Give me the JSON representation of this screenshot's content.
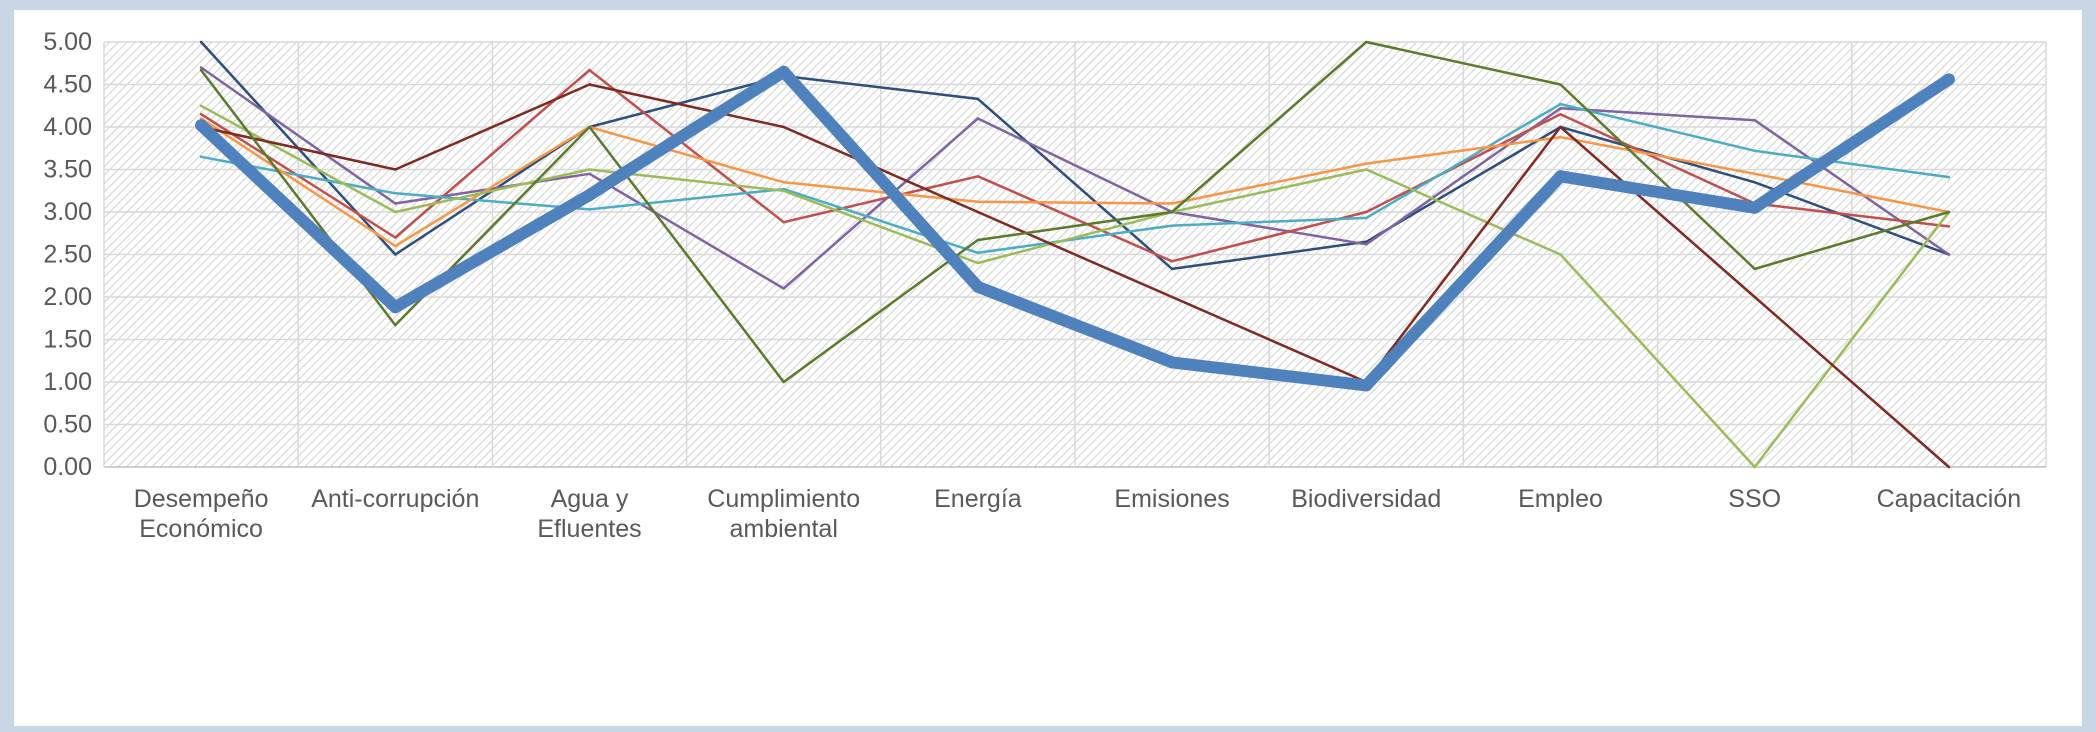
{
  "chart_data": {
    "type": "line",
    "title": "",
    "xlabel": "",
    "ylabel": "",
    "ylim": [
      0,
      5
    ],
    "yticks": [
      "0.00",
      "0.50",
      "1.00",
      "1.50",
      "2.00",
      "2.50",
      "3.00",
      "3.50",
      "4.00",
      "4.50",
      "5.00"
    ],
    "categories": [
      [
        "Desempeño",
        "Económico"
      ],
      [
        "Anti-corrupción"
      ],
      [
        "Agua y",
        "Efluentes"
      ],
      [
        "Cumplimiento",
        "ambiental"
      ],
      [
        "Energía"
      ],
      [
        "Emisiones"
      ],
      [
        "Biodiversidad"
      ],
      [
        "Empleo"
      ],
      [
        "SSO"
      ],
      [
        "Capacitación"
      ]
    ],
    "grid": true,
    "legend": "none",
    "series": [
      {
        "color": "#2e4f7c",
        "width": 2.5,
        "values": [
          5.0,
          2.5,
          4.0,
          4.6,
          4.33,
          2.33,
          2.65,
          4.0,
          3.35,
          2.5
        ]
      },
      {
        "color": "#8064a2",
        "width": 2.5,
        "values": [
          4.7,
          3.1,
          3.45,
          2.1,
          4.1,
          3.0,
          2.62,
          4.22,
          4.08,
          2.5
        ]
      },
      {
        "color": "#c0504d",
        "width": 2.5,
        "values": [
          4.15,
          2.7,
          4.67,
          2.88,
          3.42,
          2.42,
          3.0,
          4.15,
          3.1,
          2.83
        ]
      },
      {
        "color": "#4bacc6",
        "width": 2.5,
        "values": [
          3.65,
          3.22,
          3.03,
          3.27,
          2.52,
          2.84,
          2.93,
          4.27,
          3.72,
          3.41
        ]
      },
      {
        "color": "#f79646",
        "width": 2.5,
        "values": [
          4.1,
          2.6,
          4.0,
          3.35,
          3.12,
          3.1,
          3.57,
          3.88,
          3.45,
          3.0
        ]
      },
      {
        "color": "#9bbb59",
        "width": 2.5,
        "values": [
          4.25,
          3.0,
          3.5,
          3.25,
          2.4,
          3.0,
          3.5,
          2.5,
          0.0,
          3.0
        ]
      },
      {
        "color": "#7f2a22",
        "width": 2.5,
        "values": [
          4.0,
          3.5,
          4.5,
          4.0,
          3.0,
          2.0,
          1.0,
          4.0,
          2.0,
          0.0
        ]
      },
      {
        "color": "#5b7a2b",
        "width": 2.5,
        "values": [
          4.67,
          1.67,
          4.0,
          1.0,
          2.67,
          3.0,
          5.0,
          4.5,
          2.33,
          3.0
        ]
      },
      {
        "color": "#4f81bd",
        "width": 12,
        "values": [
          4.02,
          1.88,
          3.2,
          4.65,
          2.12,
          1.23,
          0.96,
          3.42,
          3.05,
          4.56
        ]
      }
    ]
  }
}
